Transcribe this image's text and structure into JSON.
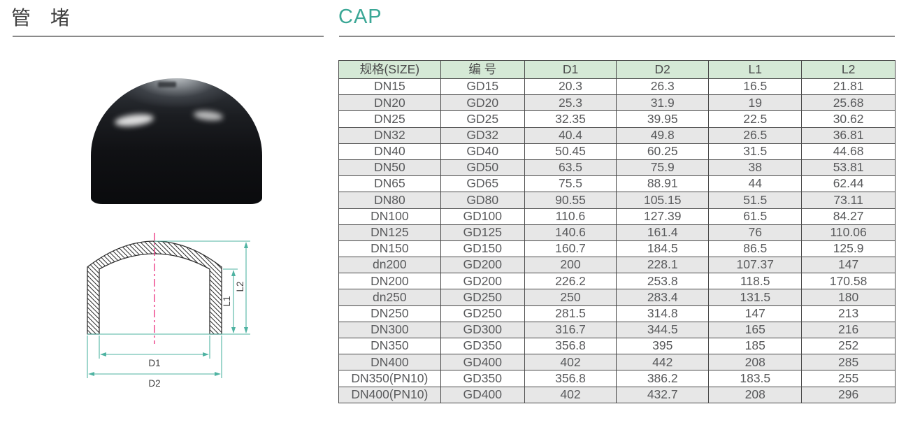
{
  "page": {
    "title_cn": "管 堵",
    "title_en": "CAP"
  },
  "colors": {
    "accent_teal": "#3BA796",
    "dimension_line_teal": "#4FB3A2",
    "centerline_pink": "#EB2D7C",
    "table_header_green": "#D5E9D6",
    "row_stripe_gray": "#E7E7E7",
    "table_border": "#4A4A4A",
    "underline_gray": "#8A8A8A"
  },
  "diagram": {
    "labels": {
      "d1": "D1",
      "d2": "D2",
      "l1": "L1",
      "l2": "L2"
    }
  },
  "table": {
    "headers": [
      "规格(SIZE)",
      "编 号",
      "D1",
      "D2",
      "L1",
      "L2"
    ],
    "rows": [
      [
        "DN15",
        "GD15",
        "20.3",
        "26.3",
        "16.5",
        "21.81"
      ],
      [
        "DN20",
        "GD20",
        "25.3",
        "31.9",
        "19",
        "25.68"
      ],
      [
        "DN25",
        "GD25",
        "32.35",
        "39.95",
        "22.5",
        "30.62"
      ],
      [
        "DN32",
        "GD32",
        "40.4",
        "49.8",
        "26.5",
        "36.81"
      ],
      [
        "DN40",
        "GD40",
        "50.45",
        "60.25",
        "31.5",
        "44.68"
      ],
      [
        "DN50",
        "GD50",
        "63.5",
        "75.9",
        "38",
        "53.81"
      ],
      [
        "DN65",
        "GD65",
        "75.5",
        "88.91",
        "44",
        "62.44"
      ],
      [
        "DN80",
        "GD80",
        "90.55",
        "105.15",
        "51.5",
        "73.11"
      ],
      [
        "DN100",
        "GD100",
        "110.6",
        "127.39",
        "61.5",
        "84.27"
      ],
      [
        "DN125",
        "GD125",
        "140.6",
        "161.4",
        "76",
        "110.06"
      ],
      [
        "DN150",
        "GD150",
        "160.7",
        "184.5",
        "86.5",
        "125.9"
      ],
      [
        "dn200",
        "GD200",
        "200",
        "228.1",
        "107.37",
        "147"
      ],
      [
        "DN200",
        "GD200",
        "226.2",
        "253.8",
        "118.5",
        "170.58"
      ],
      [
        "dn250",
        "GD250",
        "250",
        "283.4",
        "131.5",
        "180"
      ],
      [
        "DN250",
        "GD250",
        "281.5",
        "314.8",
        "147",
        "213"
      ],
      [
        "DN300",
        "GD300",
        "316.7",
        "344.5",
        "165",
        "216"
      ],
      [
        "DN350",
        "GD350",
        "356.8",
        "395",
        "185",
        "252"
      ],
      [
        "DN400",
        "GD400",
        "402",
        "442",
        "208",
        "285"
      ],
      [
        "DN350(PN10)",
        "GD350",
        "356.8",
        "386.2",
        "183.5",
        "255"
      ],
      [
        "DN400(PN10)",
        "GD400",
        "402",
        "432.7",
        "208",
        "296"
      ]
    ]
  }
}
